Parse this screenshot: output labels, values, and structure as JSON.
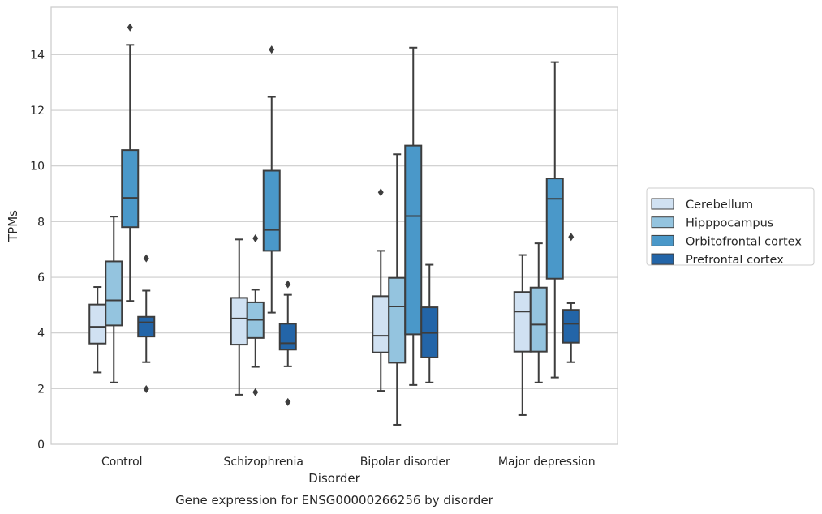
{
  "chart_data": {
    "type": "box",
    "caption": "Gene expression for ENSG00000266256 by disorder",
    "xlabel": "Disorder",
    "ylabel": "TPMs",
    "ylim": [
      0,
      15.7
    ],
    "yticks": [
      0,
      2,
      4,
      6,
      8,
      10,
      12,
      14
    ],
    "grid": "horizontal",
    "legend_position": "right",
    "categories": [
      "Control",
      "Schizophrenia",
      "Bipolar disorder",
      "Major depression"
    ],
    "series": [
      {
        "name": "Cerebellum",
        "color": "#d0e1f2",
        "boxes": [
          {
            "whislo": 2.58,
            "q1": 3.62,
            "med": 4.22,
            "q3": 5.02,
            "whishi": 5.65,
            "fliers": []
          },
          {
            "whislo": 1.78,
            "q1": 3.58,
            "med": 4.52,
            "q3": 5.26,
            "whishi": 7.36,
            "fliers": []
          },
          {
            "whislo": 1.92,
            "q1": 3.3,
            "med": 3.9,
            "q3": 5.32,
            "whishi": 6.95,
            "fliers": [
              9.05
            ]
          },
          {
            "whislo": 1.05,
            "q1": 3.33,
            "med": 4.77,
            "q3": 5.47,
            "whishi": 6.8,
            "fliers": []
          }
        ]
      },
      {
        "name": "Hipppocampus",
        "color": "#94c4df",
        "boxes": [
          {
            "whislo": 2.22,
            "q1": 4.27,
            "med": 5.17,
            "q3": 6.57,
            "whishi": 8.18,
            "fliers": []
          },
          {
            "whislo": 2.78,
            "q1": 3.82,
            "med": 4.47,
            "q3": 5.1,
            "whishi": 5.55,
            "fliers": [
              7.4,
              1.87
            ]
          },
          {
            "whislo": 0.7,
            "q1": 2.93,
            "med": 4.95,
            "q3": 5.98,
            "whishi": 10.42,
            "fliers": []
          },
          {
            "whislo": 2.22,
            "q1": 3.33,
            "med": 4.3,
            "q3": 5.63,
            "whishi": 7.22,
            "fliers": []
          }
        ]
      },
      {
        "name": "Orbitofrontal cortex",
        "color": "#4a98c9",
        "boxes": [
          {
            "whislo": 5.15,
            "q1": 7.8,
            "med": 8.85,
            "q3": 10.57,
            "whishi": 14.35,
            "fliers": [
              14.98
            ]
          },
          {
            "whislo": 4.73,
            "q1": 6.95,
            "med": 7.7,
            "q3": 9.83,
            "whishi": 12.48,
            "fliers": [
              14.18
            ]
          },
          {
            "whislo": 2.13,
            "q1": 3.95,
            "med": 8.2,
            "q3": 10.73,
            "whishi": 14.25,
            "fliers": []
          },
          {
            "whislo": 2.4,
            "q1": 5.95,
            "med": 8.82,
            "q3": 9.55,
            "whishi": 13.73,
            "fliers": []
          }
        ]
      },
      {
        "name": "Prefrontal cortex",
        "color": "#2365a8",
        "boxes": [
          {
            "whislo": 2.95,
            "q1": 3.87,
            "med": 4.38,
            "q3": 4.58,
            "whishi": 5.52,
            "fliers": [
              6.68,
              1.98
            ]
          },
          {
            "whislo": 2.8,
            "q1": 3.4,
            "med": 3.63,
            "q3": 4.33,
            "whishi": 5.37,
            "fliers": [
              5.75,
              1.52
            ]
          },
          {
            "whislo": 2.22,
            "q1": 3.12,
            "med": 4.0,
            "q3": 4.92,
            "whishi": 6.45,
            "fliers": []
          },
          {
            "whislo": 2.95,
            "q1": 3.65,
            "med": 4.33,
            "q3": 4.83,
            "whishi": 5.07,
            "fliers": [
              7.45
            ]
          }
        ]
      }
    ]
  }
}
